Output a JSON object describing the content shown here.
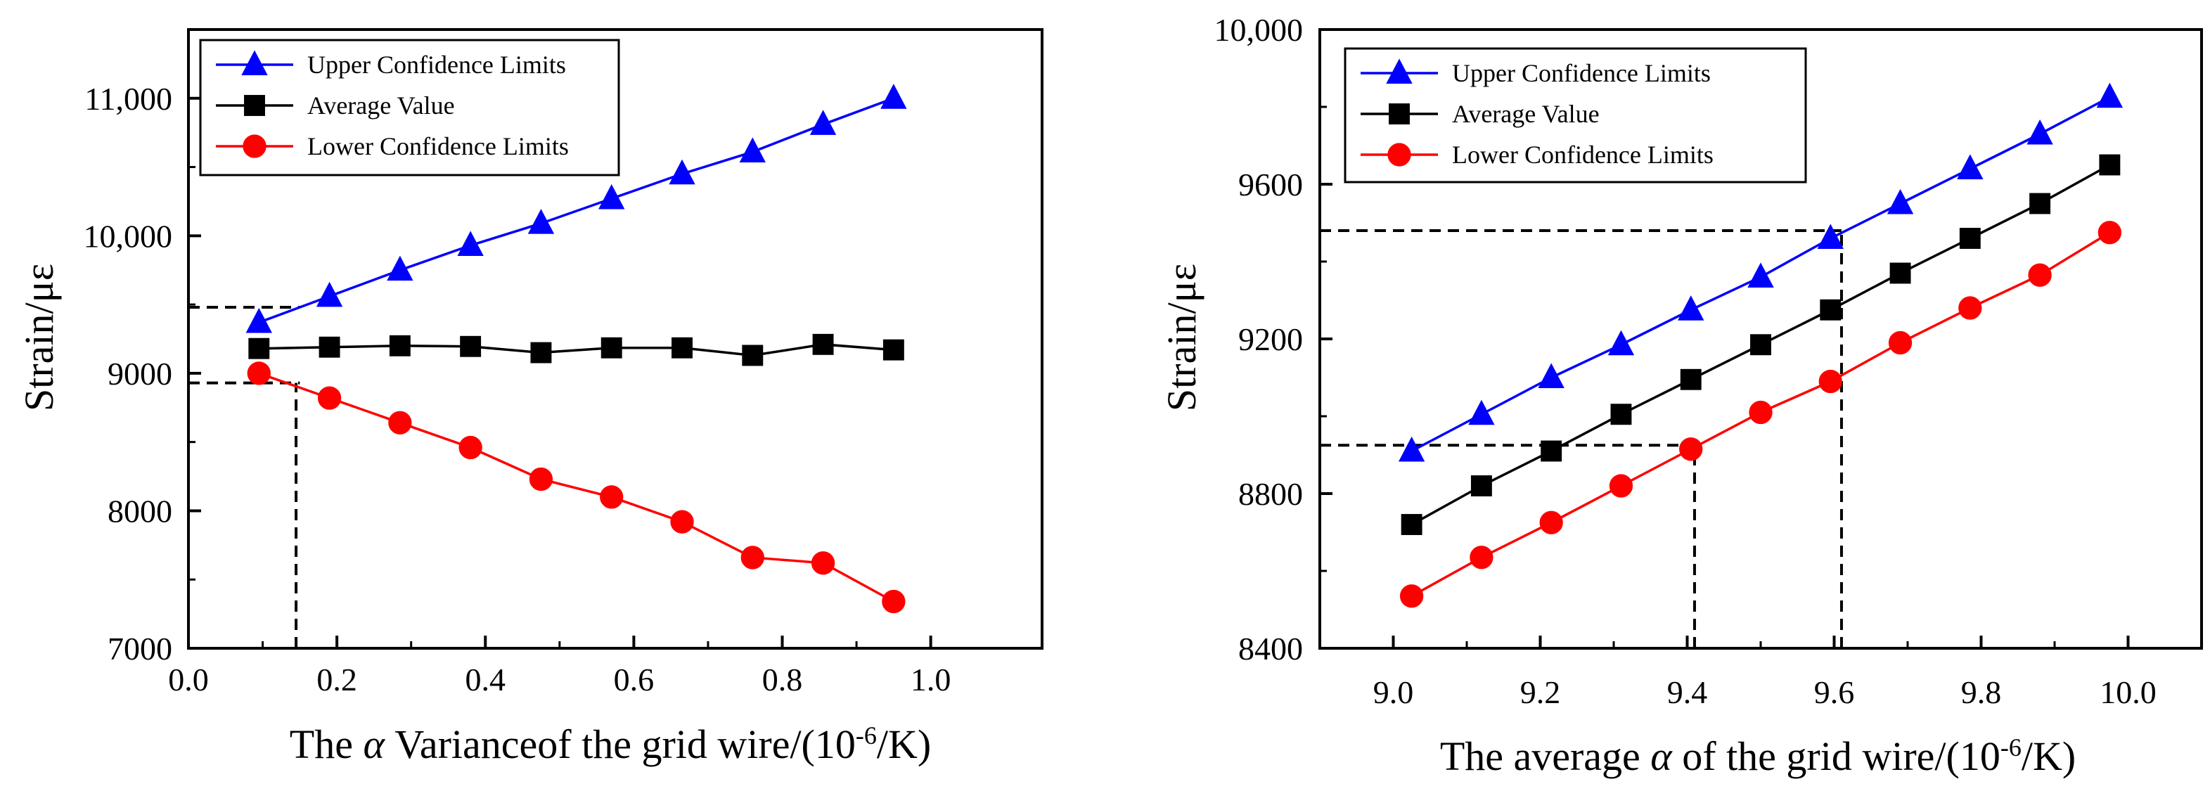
{
  "chart_data": [
    {
      "type": "line",
      "xlabel": {
        "pre": "The ",
        "symbol": "α",
        "post": " Varianceof the grid wire/(10",
        "sup": "-6",
        "tail": "/K)"
      },
      "ylabel": "Strain/με",
      "xlim": [
        0.0,
        1.15
      ],
      "ylim": [
        7000,
        11500
      ],
      "xticks": [
        0.0,
        0.2,
        0.4,
        0.6,
        0.8,
        1.0
      ],
      "xtick_labels": [
        "0.0",
        "0.2",
        "0.4",
        "0.6",
        "0.8",
        "1.0"
      ],
      "yticks": [
        7000,
        8000,
        9000,
        10000,
        11000
      ],
      "ytick_labels": [
        "7000",
        "8000",
        "9000",
        "10,000",
        "11,000"
      ],
      "x": [
        0.095,
        0.19,
        0.285,
        0.38,
        0.475,
        0.57,
        0.665,
        0.76,
        0.855,
        0.95
      ],
      "series": [
        {
          "name": "Upper Confidence Limits",
          "color": "#0000ff",
          "marker": "triangle",
          "values": [
            9370,
            9560,
            9750,
            9930,
            10090,
            10270,
            10450,
            10610,
            10810,
            11000
          ]
        },
        {
          "name": "Average Value",
          "color": "#000000",
          "marker": "square",
          "values": [
            9180,
            9190,
            9200,
            9195,
            9150,
            9185,
            9185,
            9130,
            9210,
            9170
          ]
        },
        {
          "name": "Lower Confidence Limits",
          "color": "#ff0000",
          "marker": "circle",
          "values": [
            9000,
            8820,
            8640,
            8460,
            8230,
            8100,
            7920,
            7660,
            7620,
            7340
          ]
        }
      ],
      "guides": [
        {
          "x": [
            0.0,
            0.15
          ],
          "y": [
            9480,
            9480
          ]
        },
        {
          "x": [
            0.0,
            0.15
          ],
          "y": [
            8930,
            8930
          ]
        },
        {
          "x": [
            0.145,
            0.145
          ],
          "y": [
            7000,
            8930
          ]
        }
      ]
    },
    {
      "type": "line",
      "xlabel": {
        "pre": "The average ",
        "symbol": "α",
        "post": " of the grid wire/(10",
        "sup": "-6",
        "tail": "/K)"
      },
      "ylabel": "Strain/με",
      "xlim": [
        8.9,
        10.1
      ],
      "ylim": [
        8400,
        10000
      ],
      "xticks": [
        9.0,
        9.2,
        9.4,
        9.6,
        9.8,
        10.0
      ],
      "xtick_labels": [
        "9.0",
        "9.2",
        "9.4",
        "9.6",
        "9.8",
        "10.0"
      ],
      "yticks": [
        8400,
        8800,
        9200,
        9600,
        10000
      ],
      "ytick_labels": [
        "8400",
        "8800",
        "9200",
        "9600",
        "10,000"
      ],
      "x": [
        9.025,
        9.12,
        9.215,
        9.31,
        9.405,
        9.5,
        9.595,
        9.69,
        9.785,
        9.88,
        9.975
      ],
      "series": [
        {
          "name": "Upper Confidence Limits",
          "color": "#0000ff",
          "marker": "triangle",
          "values": [
            8910,
            9005,
            9100,
            9185,
            9275,
            9360,
            9460,
            9550,
            9640,
            9730,
            9825
          ]
        },
        {
          "name": "Average Value",
          "color": "#000000",
          "marker": "square",
          "values": [
            8720,
            8820,
            8910,
            9005,
            9095,
            9185,
            9275,
            9370,
            9460,
            9550,
            9650
          ]
        },
        {
          "name": "Lower Confidence Limits",
          "color": "#ff0000",
          "marker": "circle",
          "values": [
            8535,
            8635,
            8725,
            8820,
            8915,
            9010,
            9090,
            9190,
            9280,
            9365,
            9475
          ]
        }
      ],
      "guides": [
        {
          "x": [
            8.9,
            9.61
          ],
          "y": [
            9480,
            9480
          ]
        },
        {
          "x": [
            8.9,
            9.41
          ],
          "y": [
            8925,
            8925
          ]
        },
        {
          "x": [
            9.41,
            9.41
          ],
          "y": [
            8400,
            8925
          ]
        },
        {
          "x": [
            9.61,
            9.61
          ],
          "y": [
            8400,
            9480
          ]
        }
      ]
    }
  ]
}
